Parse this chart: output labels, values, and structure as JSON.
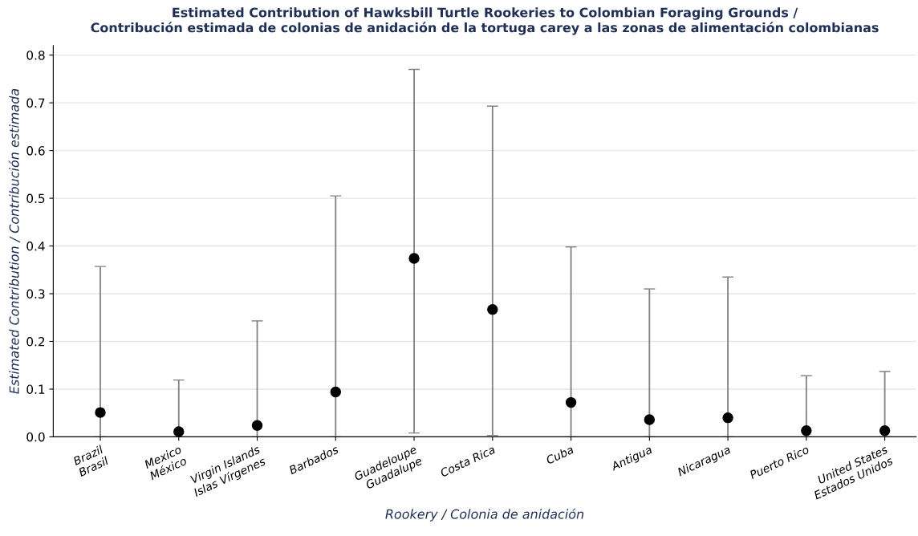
{
  "chart_data": {
    "type": "scatter",
    "title": "Estimated Contribution of Hawksbill Turtle Rookeries to Colombian Foraging Grounds /\nContribución estimada de colonias de anidación de la tortuga carey a las zonas de alimentación colombianas",
    "xlabel": "Rookery / Colonia de anidación",
    "ylabel": "Estimated Contribution / Contribución estimada",
    "categories": [
      "Brazil\nBrasil",
      "Mexico\nMéxico",
      "Virgin Islands\nIslas Vírgenes",
      "Barbados",
      "Guadeloupe\nGuadalupe",
      "Costa Rica",
      "Cuba",
      "Antigua",
      "Nicaragua",
      "Puerto Rico",
      "United States\nEstados Unidos"
    ],
    "series": [
      {
        "color": "#000000",
        "values": [
          0.051,
          0.011,
          0.024,
          0.094,
          0.374,
          0.267,
          0.072,
          0.036,
          0.04,
          0.013,
          0.013
        ],
        "errors": [
          [
            0,
            0.357
          ],
          [
            0,
            0.119
          ],
          [
            0,
            0.243
          ],
          [
            0,
            0.505
          ],
          [
            0.008,
            0.77
          ],
          [
            0.003,
            0.693
          ],
          [
            0,
            0.398
          ],
          [
            0,
            0.31
          ],
          [
            0,
            0.335
          ],
          [
            0,
            0.128
          ],
          [
            0,
            0.137
          ]
        ]
      }
    ],
    "ylim": [
      0,
      0.82
    ],
    "yticks": [
      {
        "value": 0,
        "label": "0.0"
      },
      0.1,
      0.2,
      0.3,
      0.4,
      0.5,
      0.6,
      0.7,
      0.8
    ],
    "grid": "y",
    "marker": "circle",
    "legend": false
  }
}
